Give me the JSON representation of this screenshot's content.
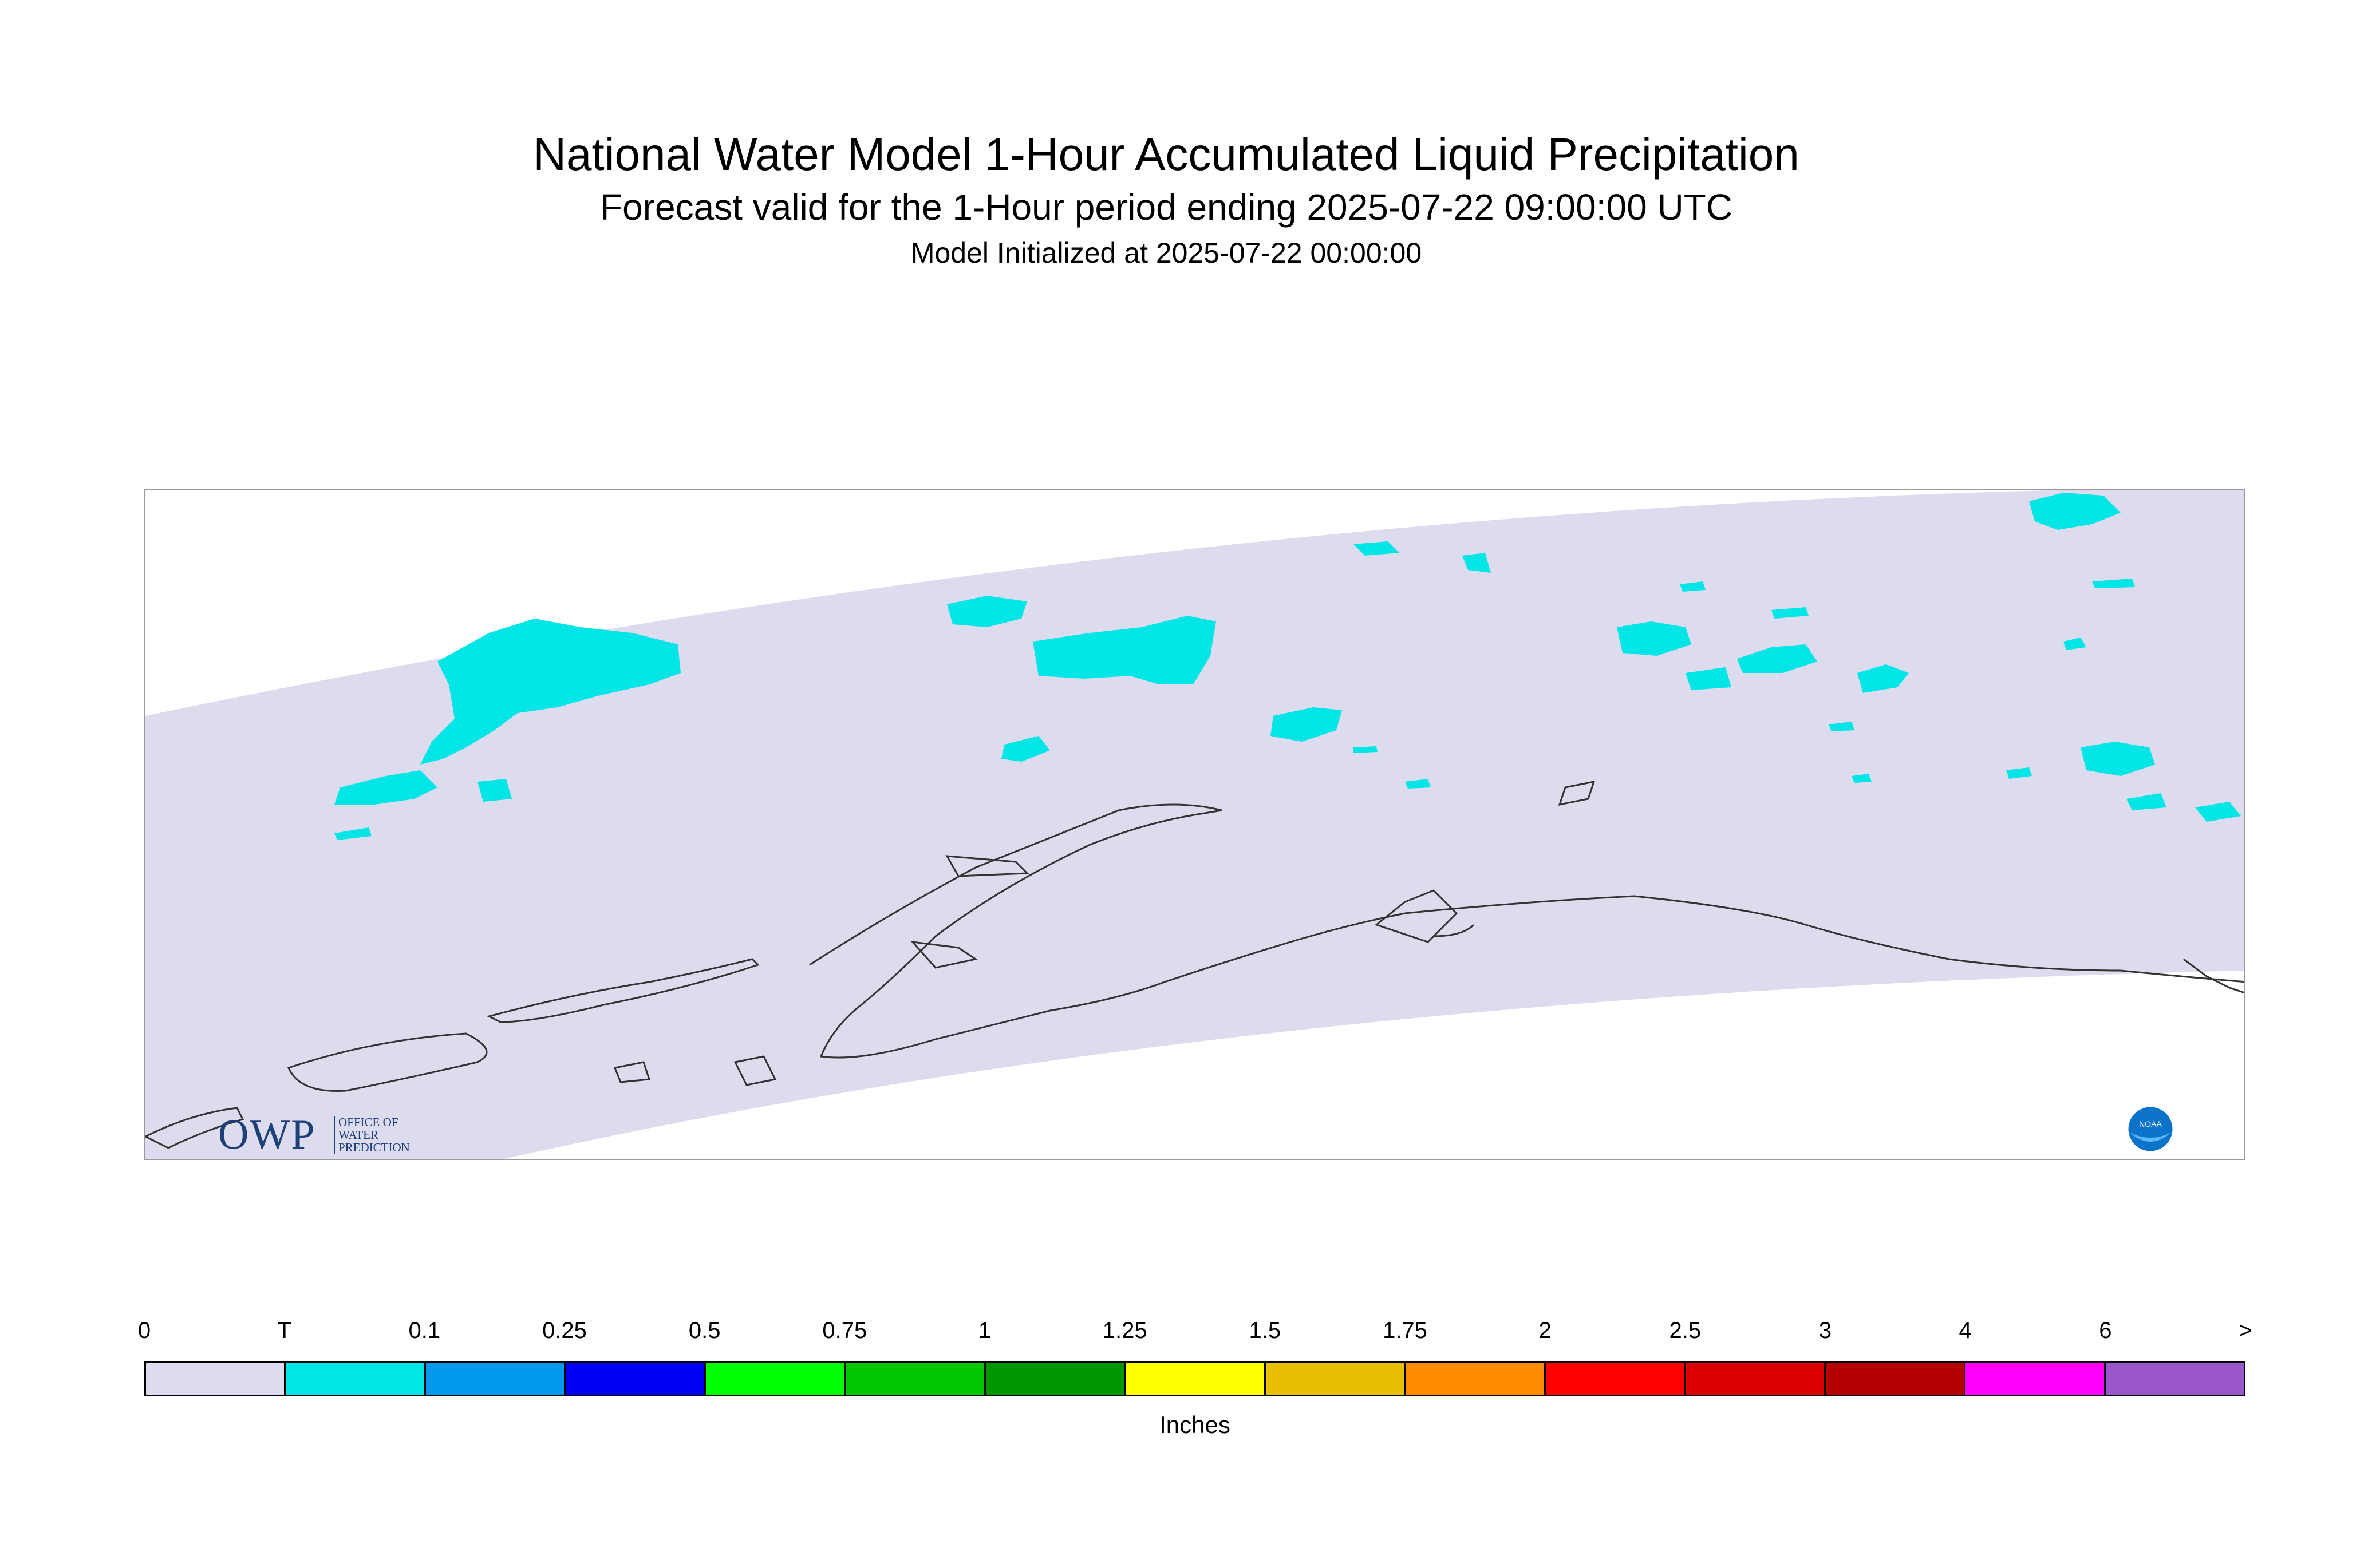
{
  "title": {
    "main": "National Water Model 1-Hour Accumulated Liquid Precipitation",
    "forecast": "Forecast valid for the 1-Hour period ending 2025-07-22 09:00:00 UTC",
    "init": "Model Initialized at 2025-07-22 00:00:00"
  },
  "logos": {
    "owp_main": "OWP",
    "owp_sub": "OFFICE OF WATER PREDICTION",
    "noaa": "NOAA"
  },
  "colors": {
    "domain_fill": "#dcdcee",
    "precip_trace": "#00e6e6",
    "coastline": "#333333"
  },
  "legend": {
    "ticks": [
      "0",
      "T",
      "0.1",
      "0.25",
      "0.5",
      "0.75",
      "1",
      "1.25",
      "1.5",
      "1.75",
      "2",
      "2.5",
      "3",
      "4",
      "6",
      ">"
    ],
    "colors": [
      "#dcdcee",
      "#00e6e6",
      "#0099ee",
      "#0000f2",
      "#00ff00",
      "#00c800",
      "#009600",
      "#ffff00",
      "#e6c000",
      "#ff8c00",
      "#ff0000",
      "#dc0000",
      "#b40000",
      "#ff00ff",
      "#9955cc"
    ],
    "units": "Inches"
  }
}
